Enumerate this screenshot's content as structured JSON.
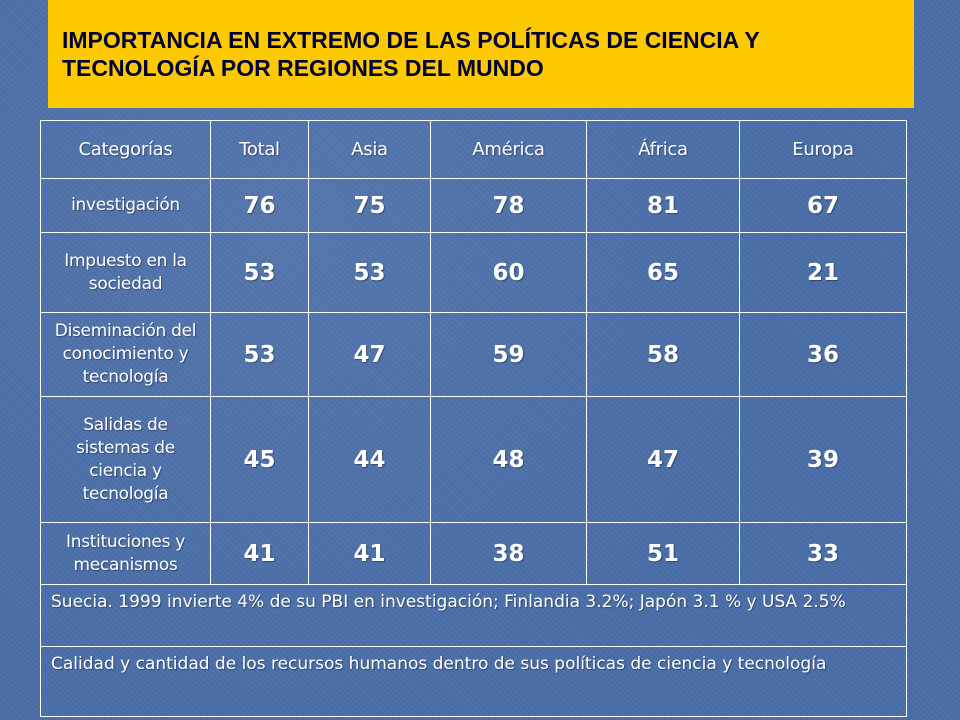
{
  "title": {
    "line1": "IMPORTANCIA  EN EXTREMO DE LAS POLÍTICAS DE CIENCIA Y",
    "line2": "TECNOLOGÍA POR REGIONES DEL MUNDO"
  },
  "table": {
    "headers": [
      "Categorías",
      "Total",
      "Asia",
      "América",
      "África",
      "Europa"
    ],
    "rows": [
      {
        "category": "investigación",
        "values": [
          "76",
          "75",
          "78",
          "81",
          "67"
        ]
      },
      {
        "category": "Impuesto en la sociedad",
        "values": [
          "53",
          "53",
          "60",
          "65",
          "21"
        ]
      },
      {
        "category": "Diseminación del conocimiento y tecnología",
        "values": [
          "53",
          "47",
          "59",
          "58",
          "36"
        ]
      },
      {
        "category": "Salidas de sistemas de ciencia y tecnología",
        "values": [
          "45",
          "44",
          "48",
          "47",
          "39"
        ]
      },
      {
        "category": "Instituciones y mecanismos",
        "values": [
          "41",
          "41",
          "38",
          "51",
          "33"
        ]
      }
    ],
    "notes": [
      "Suecia. 1999 invierte 4% de su PBI en investigación; Finlandia 3.2%; Japón 3.1 % y USA 2.5%",
      "Calidad y cantidad de los recursos humanos dentro de sus políticas de ciencia y tecnología"
    ]
  },
  "colors": {
    "background": "#4a6ea8",
    "title_box": "#fdc900",
    "title_text": "#000033",
    "table_text": "#ffffff"
  }
}
